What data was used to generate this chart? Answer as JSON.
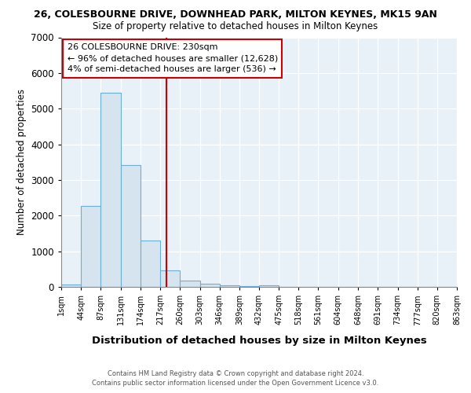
{
  "title1": "26, COLESBOURNE DRIVE, DOWNHEAD PARK, MILTON KEYNES, MK15 9AN",
  "title2": "Size of property relative to detached houses in Milton Keynes",
  "xlabel": "Distribution of detached houses by size in Milton Keynes",
  "ylabel": "Number of detached properties",
  "footer1": "Contains HM Land Registry data © Crown copyright and database right 2024.",
  "footer2": "Contains public sector information licensed under the Open Government Licence v3.0.",
  "annotation_line1": "26 COLESBOURNE DRIVE: 230sqm",
  "annotation_line2": "← 96% of detached houses are smaller (12,628)",
  "annotation_line3": "4% of semi-detached houses are larger (536) →",
  "property_size": 230,
  "bar_color": "#d6e4f0",
  "bar_edge_color": "#6baed6",
  "red_line_color": "#cc0000",
  "annotation_box_color": "#ffffff",
  "annotation_box_edge": "#cc0000",
  "bins": [
    1,
    44,
    87,
    131,
    174,
    217,
    260,
    303,
    346,
    389,
    432,
    475,
    518,
    561,
    604,
    648,
    691,
    734,
    777,
    820,
    863
  ],
  "counts": [
    75,
    2280,
    5450,
    3420,
    1310,
    460,
    175,
    85,
    55,
    30,
    50,
    0,
    0,
    0,
    0,
    0,
    0,
    0,
    0,
    0
  ],
  "ylim": [
    0,
    7000
  ],
  "yticks": [
    0,
    1000,
    2000,
    3000,
    4000,
    5000,
    6000,
    7000
  ],
  "fig_bg": "#ffffff",
  "axes_bg": "#e8f0f8",
  "grid_color": "#ffffff"
}
